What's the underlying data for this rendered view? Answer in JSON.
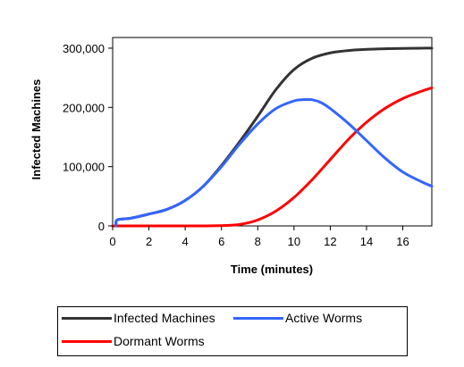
{
  "chart_data": {
    "type": "line",
    "title": "",
    "xlabel": "Time (minutes)",
    "ylabel": "Infected Machines",
    "xlim": [
      0,
      17.6
    ],
    "ylim": [
      0,
      318000
    ],
    "xticks": [
      0,
      2,
      4,
      6,
      8,
      10,
      12,
      14,
      16
    ],
    "xtick_labels": [
      "0",
      "2",
      "4",
      "6",
      "8",
      "10",
      "12",
      "14",
      "16"
    ],
    "yticks": [
      0,
      100000,
      200000,
      300000
    ],
    "ytick_labels": [
      "0",
      "100,000",
      "200,000",
      "300,000"
    ],
    "grid": false,
    "legend": "bottom",
    "series": [
      {
        "name": "Infected Machines",
        "color": "#333333",
        "x": [
          0.2,
          0.25,
          1,
          2,
          3,
          4,
          5,
          6,
          7,
          8,
          9,
          10,
          11,
          12,
          13,
          14,
          15,
          16,
          17,
          17.6
        ],
        "y": [
          0,
          10000,
          13000,
          20000,
          28000,
          43000,
          67000,
          102000,
          142000,
          185000,
          230000,
          264000,
          283000,
          292000,
          296000,
          298000,
          299000,
          299500,
          300000,
          300000
        ]
      },
      {
        "name": "Active Worms",
        "color": "#3366ff",
        "x": [
          0.2,
          0.25,
          1,
          2,
          3,
          4,
          5,
          6,
          7,
          8,
          9,
          10,
          10.5,
          11,
          11.5,
          12,
          13,
          14,
          15,
          16,
          17,
          17.6
        ],
        "y": [
          0,
          10000,
          13000,
          20000,
          28000,
          43000,
          67000,
          100000,
          138000,
          172000,
          198000,
          211000,
          213000,
          213000,
          208000,
          198000,
          173000,
          144000,
          115000,
          91000,
          75000,
          67000
        ]
      },
      {
        "name": "Dormant Worms",
        "color": "#ff0000",
        "x": [
          0,
          1,
          2,
          3,
          4,
          5,
          6,
          7,
          8,
          9,
          10,
          11,
          12,
          13,
          14,
          15,
          16,
          17,
          17.6
        ],
        "y": [
          0,
          0,
          0,
          0,
          0,
          0,
          500,
          2500,
          10000,
          25000,
          48000,
          78000,
          112000,
          146000,
          175000,
          198000,
          215000,
          227000,
          233000
        ]
      }
    ]
  },
  "legend": {
    "items": [
      {
        "label": "Infected Machines",
        "color": "#333333"
      },
      {
        "label": "Active Worms",
        "color": "#3366ff"
      },
      {
        "label": "Dormant Worms",
        "color": "#ff0000"
      }
    ]
  }
}
